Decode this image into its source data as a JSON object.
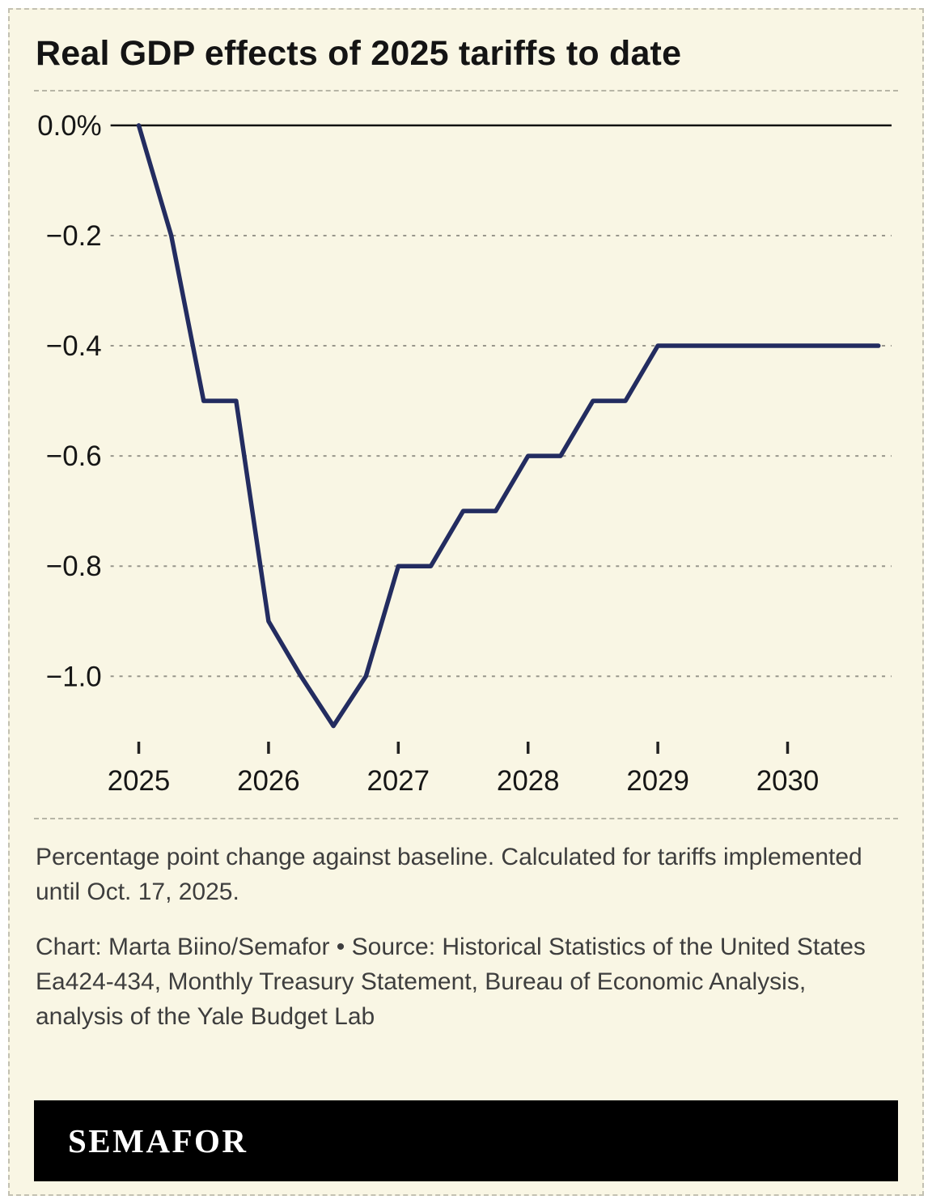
{
  "title": "Real GDP effects of 2025 tariffs to date",
  "chart_data": {
    "type": "line",
    "title": "Real GDP effects of 2025 tariffs to date",
    "series_name": "Percentage point change in real GDP vs. baseline",
    "x": [
      2025,
      2025.25,
      2025.5,
      2025.75,
      2026,
      2026.25,
      2026.5,
      2026.75,
      2027,
      2027.25,
      2027.5,
      2027.75,
      2028,
      2028.25,
      2028.5,
      2028.75,
      2029,
      2030.7
    ],
    "values": [
      0.0,
      -0.2,
      -0.5,
      -0.5,
      -0.9,
      -1.0,
      -1.09,
      -1.0,
      -0.8,
      -0.8,
      -0.7,
      -0.7,
      -0.6,
      -0.6,
      -0.5,
      -0.5,
      -0.4,
      -0.4
    ],
    "xlabel": "",
    "ylabel": "",
    "xlim": [
      2025,
      2030.8
    ],
    "ylim": [
      -1.15,
      0
    ],
    "x_ticks": [
      2025,
      2026,
      2027,
      2028,
      2029,
      2030
    ],
    "x_tick_labels": [
      "2025",
      "2026",
      "2027",
      "2028",
      "2029",
      "2030"
    ],
    "y_ticks": [
      0,
      -0.2,
      -0.4,
      -0.6,
      -0.8,
      -1.0
    ],
    "y_tick_labels": [
      "0.0%",
      "−0.2",
      "−0.4",
      "−0.6",
      "−0.8",
      "−1.0"
    ],
    "grid": "horizontal dashed gridlines, solid line at zero",
    "legend": "none",
    "line_color": "#232c60"
  },
  "notes": {
    "note": "Percentage point change against baseline. Calculated for tariffs implemented until Oct. 17, 2025.",
    "credit": "Chart: Marta Biino/Semafor • Source: Historical Statistics of the United States Ea424-434, Monthly Treasury Statement, Bureau of Economic Analysis, analysis of the Yale Budget Lab"
  },
  "footer": {
    "brand": "SEMAFOR"
  },
  "colors": {
    "background": "#f9f6e4",
    "line": "#232c60",
    "grid": "#98968b",
    "zero_line": "#111111",
    "title_text": "#141414",
    "note_text": "#3e3e3e",
    "footer_bg": "#000000",
    "footer_text": "#ffffff"
  }
}
